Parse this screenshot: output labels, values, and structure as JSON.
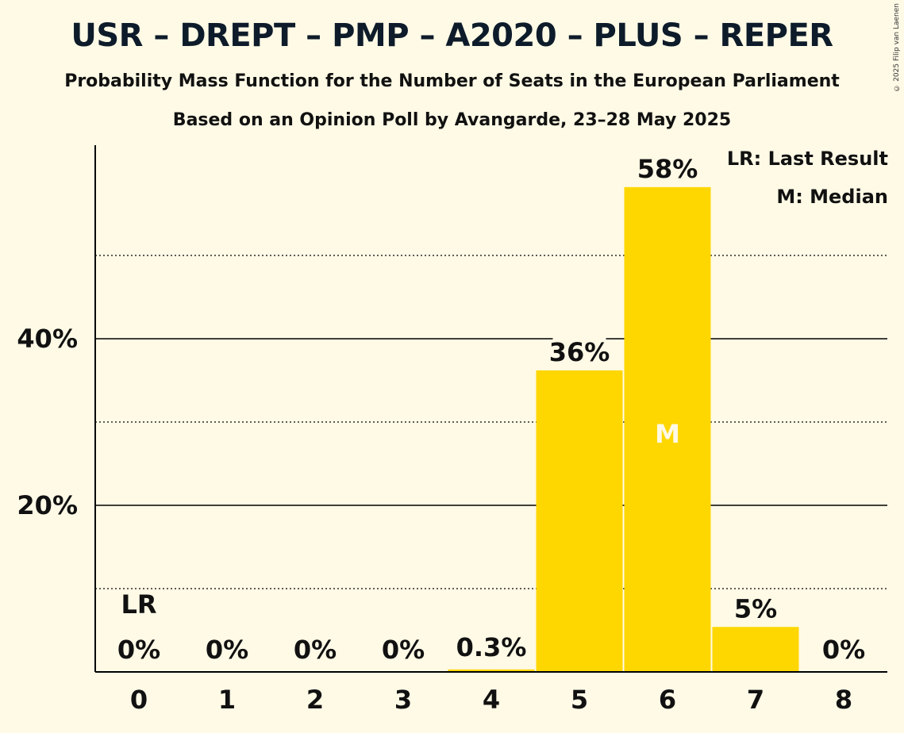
{
  "title": "USR – DREPT – PMP – A2020 – PLUS – REPER",
  "subtitle": "Probability Mass Function for the Number of Seats in the European Parliament",
  "subtitle2": "Based on an Opinion Poll by Avangarde, 23–28 May 2025",
  "copyright": "© 2025 Filip van Laenen",
  "legend": {
    "last_result": "LR: Last Result",
    "median": "M: Median"
  },
  "colors": {
    "bar": "#FFD700",
    "background": "#FFFAE6",
    "median_marker": "#FFFAE6"
  },
  "chart_data": {
    "type": "bar",
    "categories": [
      "0",
      "1",
      "2",
      "3",
      "4",
      "5",
      "6",
      "7",
      "8"
    ],
    "values": [
      0,
      0,
      0,
      0,
      0.3,
      36.2,
      58.2,
      5.4,
      0
    ],
    "data_labels": [
      "0%",
      "0%",
      "0%",
      "0%",
      "0.3%",
      "36%",
      "58%",
      "5%",
      "0%"
    ],
    "title": "USR – DREPT – PMP – A2020 – PLUS – REPER",
    "xlabel": "",
    "ylabel": "",
    "ylim": [
      0,
      63
    ],
    "yticks_major": [
      20,
      40
    ],
    "ytick_labels": [
      "20%",
      "40%"
    ],
    "yticks_minor": [
      10,
      30,
      50
    ],
    "last_result_category": "0",
    "last_result_label": "LR",
    "median_category": "6",
    "median_label": "M",
    "grid": true
  }
}
